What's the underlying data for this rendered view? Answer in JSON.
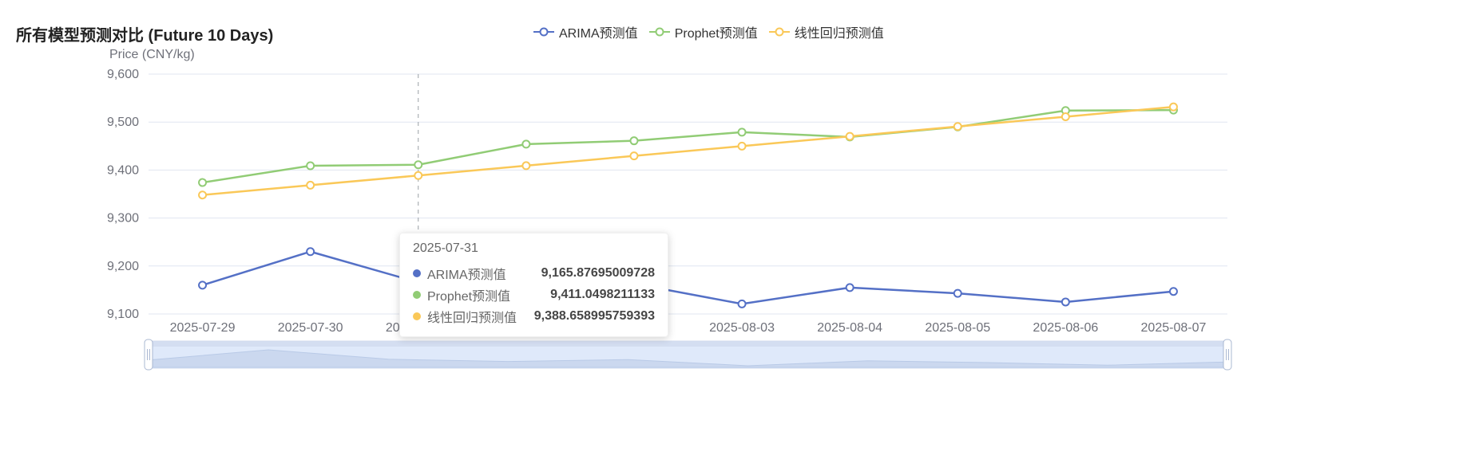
{
  "title": "所有模型预测对比 (Future 10 Days)",
  "y_axis_name": "Price (CNY/kg)",
  "legend": [
    {
      "label": "ARIMA预测值",
      "color": "#5470c6",
      "icon": "line-circle-icon"
    },
    {
      "label": "Prophet预测值",
      "color": "#91cc75",
      "icon": "line-circle-icon"
    },
    {
      "label": "线性回归预测值",
      "color": "#fac858",
      "icon": "line-circle-icon"
    }
  ],
  "tooltip": {
    "date": "2025-07-31",
    "rows": [
      {
        "label": "ARIMA预测值",
        "value": "9,165.87695009728",
        "color": "#5470c6"
      },
      {
        "label": "Prophet预测值",
        "value": "9,411.0498211133",
        "color": "#91cc75"
      },
      {
        "label": "线性回归预测值",
        "value": "9,388.658995759393",
        "color": "#fac858"
      }
    ]
  },
  "chart_data": {
    "type": "line",
    "title": "所有模型预测对比 (Future 10 Days)",
    "ylabel": "Price (CNY/kg)",
    "x": [
      "2025-07-29",
      "2025-07-30",
      "2025-07-31",
      "2025-08-01",
      "2025-08-02",
      "2025-08-03",
      "2025-08-04",
      "2025-08-05",
      "2025-08-06",
      "2025-08-07"
    ],
    "series": [
      {
        "name": "ARIMA预测值",
        "color": "#5470c6",
        "values": [
          9160,
          9230,
          9165.88,
          9150,
          9163,
          9121,
          9155,
          9143,
          9125,
          9147
        ]
      },
      {
        "name": "Prophet预测值",
        "color": "#91cc75",
        "values": [
          9374,
          9409,
          9411.05,
          9454,
          9461,
          9479,
          9469,
          9490,
          9524,
          9525
        ]
      },
      {
        "name": "线性回归预测值",
        "color": "#fac858",
        "values": [
          9348,
          9368.4,
          9388.66,
          9409.1,
          9429.5,
          9449.9,
          9470.3,
          9490.8,
          9511.2,
          9531.6
        ]
      }
    ],
    "ylim": [
      9100,
      9600
    ],
    "y_ticks": [
      9100,
      9200,
      9300,
      9400,
      9500,
      9600
    ],
    "grid": true,
    "legend_position": "top-center",
    "tooltip_index": 2,
    "datazoom": {
      "start_pct": 0,
      "end_pct": 100
    }
  }
}
